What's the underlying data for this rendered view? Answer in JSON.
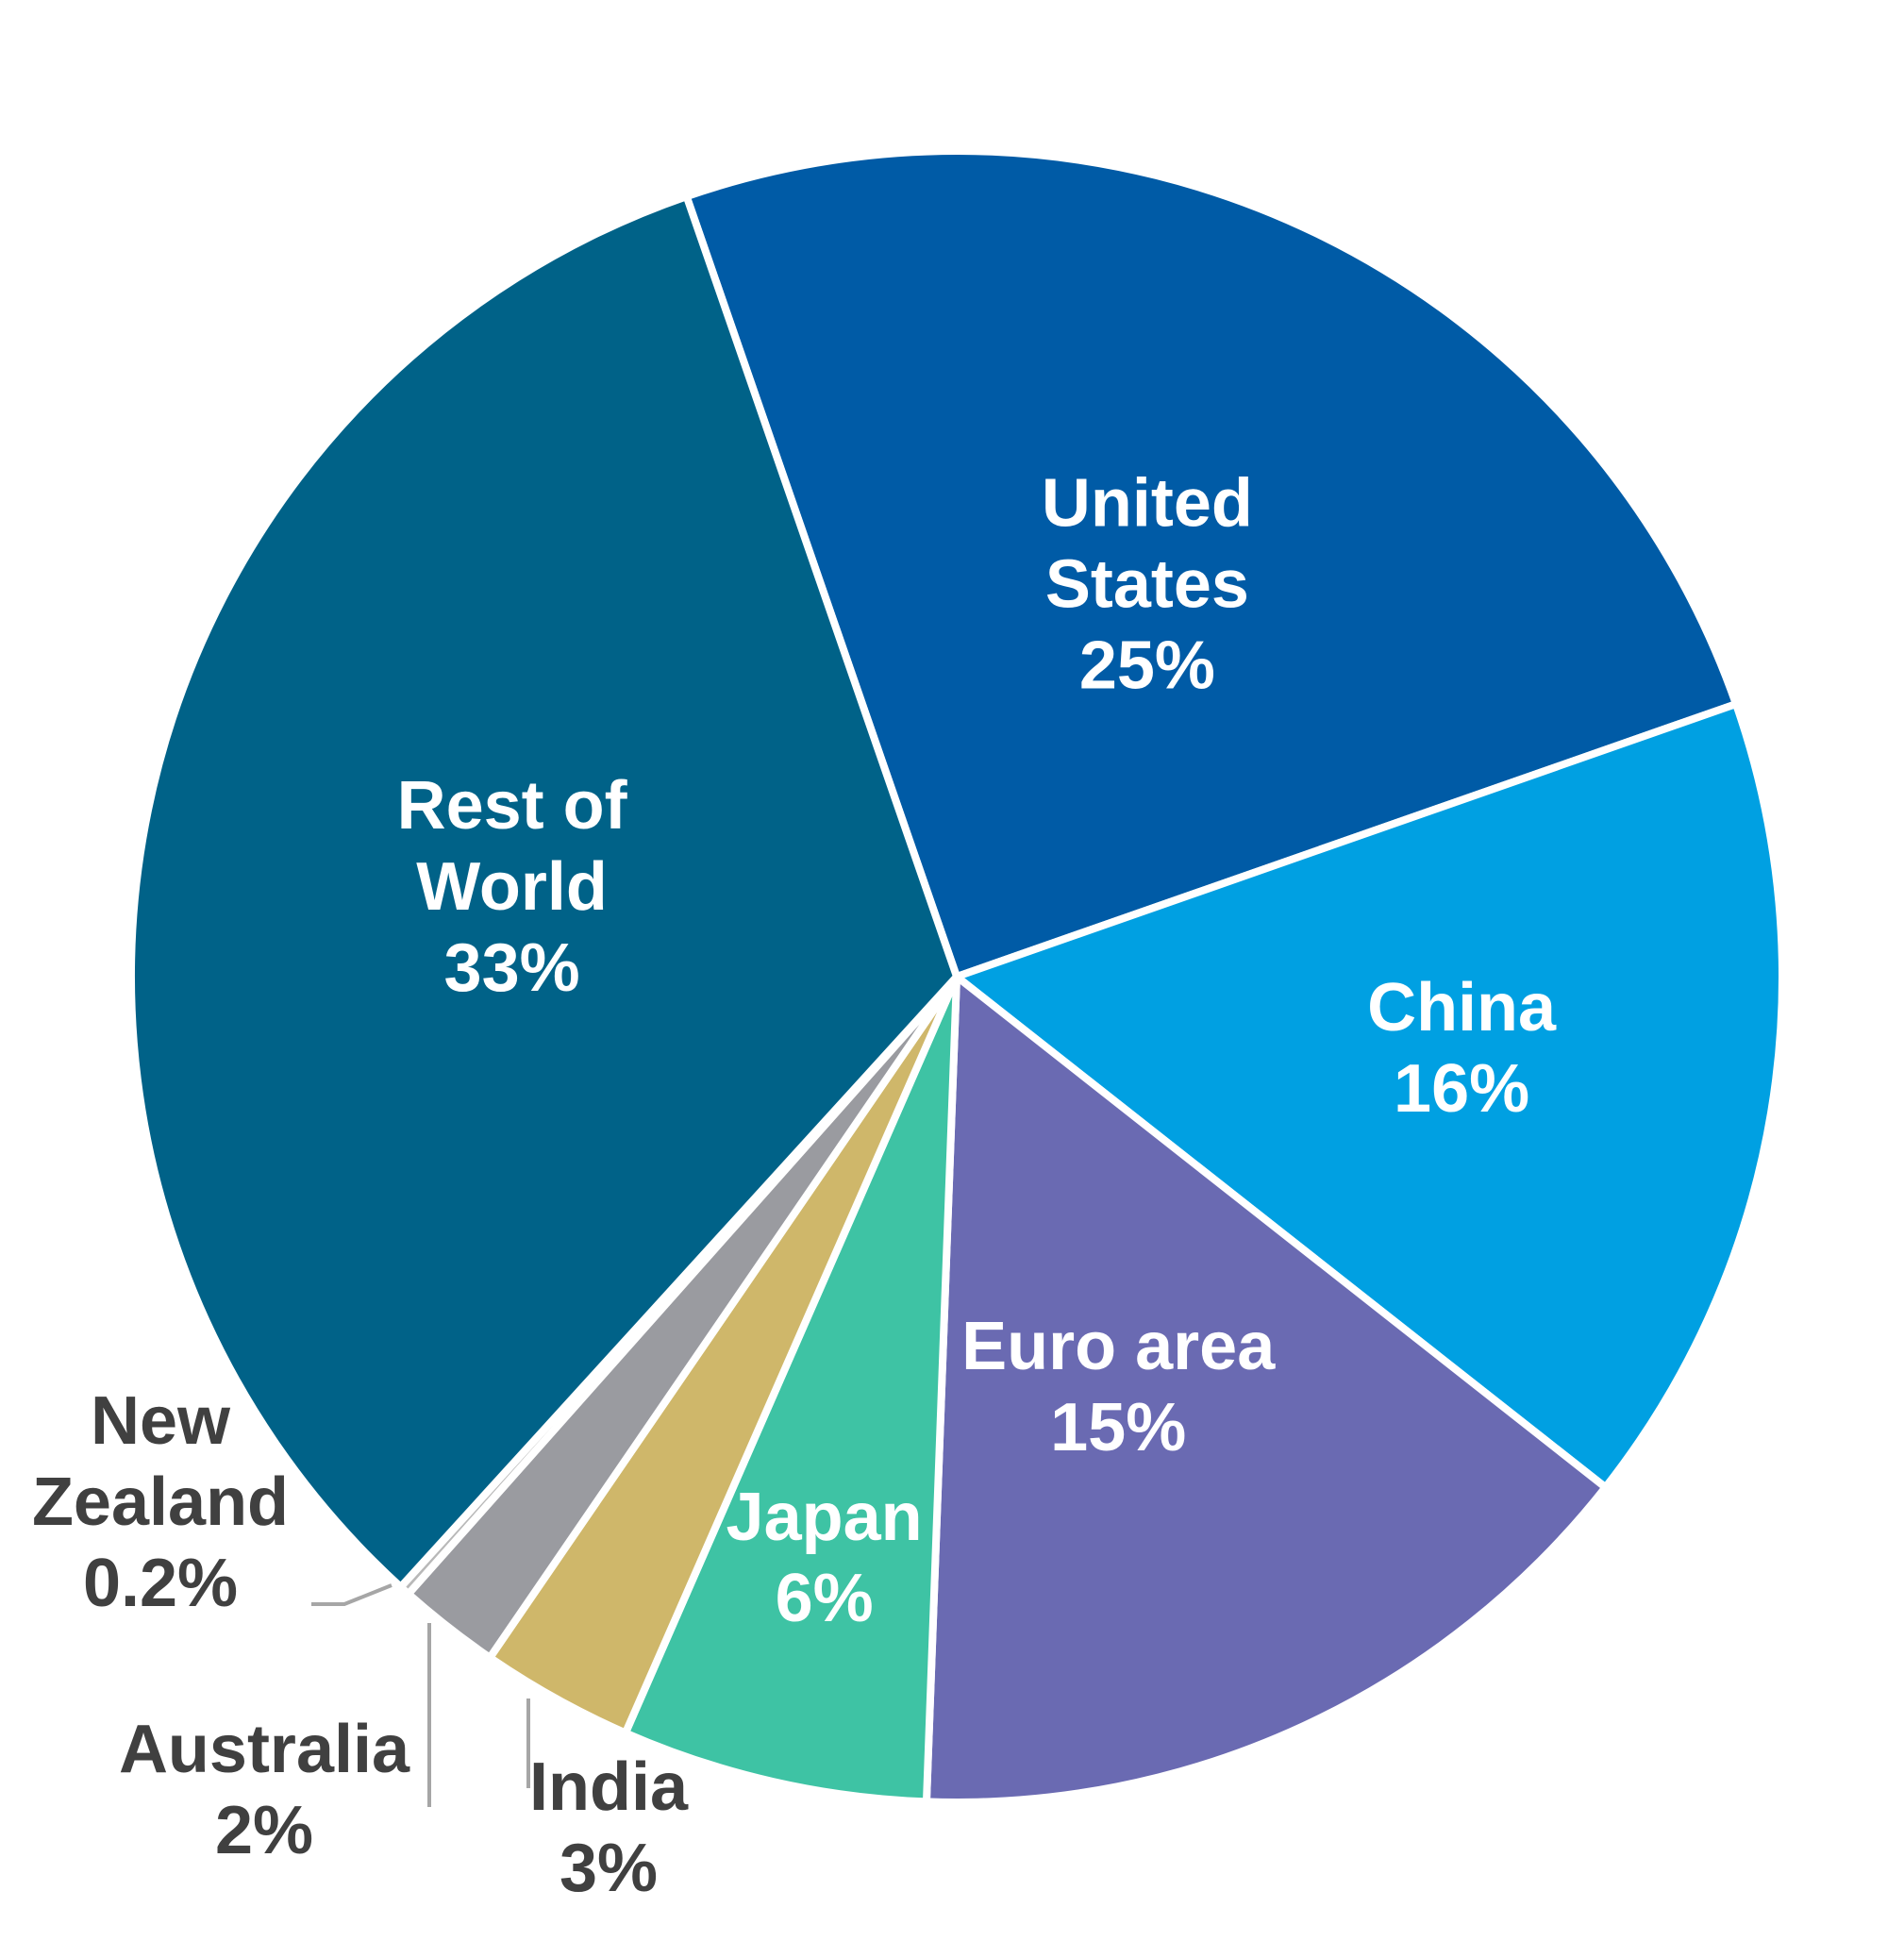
{
  "chart_data": {
    "type": "pie",
    "title": "",
    "slices": [
      {
        "label": "United States",
        "lines": [
          "United",
          "States"
        ],
        "value": 25,
        "value_label": "25%",
        "color": "#005BA6",
        "label_color": "#ffffff"
      },
      {
        "label": "China",
        "lines": [
          "China"
        ],
        "value": 16,
        "value_label": "16%",
        "color": "#00A0E2",
        "label_color": "#ffffff"
      },
      {
        "label": "Euro area",
        "lines": [
          "Euro area"
        ],
        "value": 15,
        "value_label": "15%",
        "color": "#6A6AB2",
        "label_color": "#ffffff"
      },
      {
        "label": "Japan",
        "lines": [
          "Japan"
        ],
        "value": 6,
        "value_label": "6%",
        "color": "#3EC3A4",
        "label_color": "#ffffff"
      },
      {
        "label": "India",
        "lines": [
          "India"
        ],
        "value": 3,
        "value_label": "3%",
        "color": "#CFB76A",
        "label_color": "#404040"
      },
      {
        "label": "Australia",
        "lines": [
          "Australia"
        ],
        "value": 2,
        "value_label": "2%",
        "color": "#9A9BA0",
        "label_color": "#404040"
      },
      {
        "label": "New Zealand",
        "lines": [
          "New",
          "Zealand"
        ],
        "value": 0.2,
        "value_label": "0.2%",
        "color": "#B8B8B8",
        "label_color": "#404040"
      },
      {
        "label": "Rest of World",
        "lines": [
          "Rest of",
          "World"
        ],
        "value": 33,
        "value_label": "33%",
        "color": "#006288",
        "label_color": "#ffffff"
      }
    ],
    "legend": "none",
    "labels_position": "on slices, with leader lines for small slices"
  }
}
